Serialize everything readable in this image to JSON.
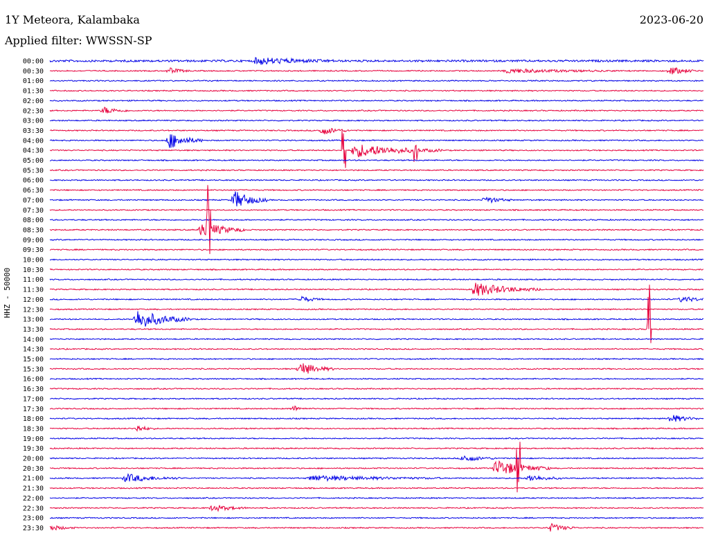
{
  "header": {
    "station": "1Y Meteora, Kalambaka",
    "date": "2023-06-20",
    "filter": "Applied filter: WWSSN-SP"
  },
  "chart_data": {
    "type": "line",
    "title": "1Y Meteora, Kalambaka",
    "ylabel": "HHZ - 50000",
    "colors": [
      "#0000e6",
      "#e6003c"
    ],
    "tick_labels": [
      "00:00",
      "00:30",
      "01:00",
      "01:30",
      "02:00",
      "02:30",
      "03:00",
      "03:30",
      "04:00",
      "04:30",
      "05:00",
      "05:30",
      "06:00",
      "06:30",
      "07:00",
      "07:30",
      "08:00",
      "08:30",
      "09:00",
      "09:30",
      "10:00",
      "10:30",
      "11:00",
      "11:30",
      "12:00",
      "12:30",
      "13:00",
      "13:30",
      "14:00",
      "14:30",
      "15:00",
      "15:30",
      "16:00",
      "16:30",
      "17:00",
      "17:30",
      "18:00",
      "18:30",
      "19:00",
      "19:30",
      "20:00",
      "20:30",
      "21:00",
      "21:30",
      "22:00",
      "22:30",
      "23:00",
      "23:30"
    ],
    "trace_duration_min": 30,
    "events": [
      {
        "trace": "00:00",
        "minute": 9.5,
        "duration_min": 3.5,
        "amplitude": 5,
        "kind": "burst"
      },
      {
        "trace": "00:00",
        "minute": 0,
        "duration_min": 30,
        "amplitude": 1.5,
        "kind": "noise"
      },
      {
        "trace": "00:30",
        "minute": 5.5,
        "duration_min": 1,
        "amplitude": 4,
        "kind": "burst"
      },
      {
        "trace": "00:30",
        "minute": 21,
        "duration_min": 5,
        "amplitude": 3,
        "kind": "burst"
      },
      {
        "trace": "00:30",
        "minute": 28.5,
        "duration_min": 1.2,
        "amplitude": 6,
        "kind": "burst"
      },
      {
        "trace": "02:30",
        "minute": 2.5,
        "duration_min": 1.2,
        "amplitude": 5,
        "kind": "burst"
      },
      {
        "trace": "03:30",
        "minute": 12.5,
        "duration_min": 1.3,
        "amplitude": 6,
        "kind": "burst"
      },
      {
        "trace": "04:00",
        "minute": 5.5,
        "duration_min": 1.5,
        "amplitude": 12,
        "kind": "burst"
      },
      {
        "trace": "04:30",
        "minute": 14,
        "duration_min": 4,
        "amplitude": 10,
        "kind": "burst"
      },
      {
        "trace": "04:30",
        "minute": 13.5,
        "duration_min": 0.2,
        "amplitude": 40,
        "kind": "spike"
      },
      {
        "trace": "04:30",
        "minute": 16.8,
        "duration_min": 0.2,
        "amplitude": 16,
        "kind": "spike"
      },
      {
        "trace": "07:00",
        "minute": 8.5,
        "duration_min": 1.5,
        "amplitude": 13,
        "kind": "burst"
      },
      {
        "trace": "07:00",
        "minute": 20,
        "duration_min": 1.2,
        "amplitude": 5,
        "kind": "burst"
      },
      {
        "trace": "08:30",
        "minute": 7,
        "duration_min": 2,
        "amplitude": 12,
        "kind": "burst"
      },
      {
        "trace": "08:30",
        "minute": 7.3,
        "duration_min": 0.2,
        "amplitude": 60,
        "kind": "spike"
      },
      {
        "trace": "11:30",
        "minute": 19.5,
        "duration_min": 3,
        "amplitude": 10,
        "kind": "burst"
      },
      {
        "trace": "12:00",
        "minute": 11.5,
        "duration_min": 1,
        "amplitude": 5,
        "kind": "burst"
      },
      {
        "trace": "12:00",
        "minute": 29,
        "duration_min": 1.5,
        "amplitude": 4,
        "kind": "burst"
      },
      {
        "trace": "13:00",
        "minute": 4,
        "duration_min": 2.5,
        "amplitude": 14,
        "kind": "burst"
      },
      {
        "trace": "13:30",
        "minute": 27.5,
        "duration_min": 0.2,
        "amplitude": 70,
        "kind": "spike"
      },
      {
        "trace": "15:30",
        "minute": 11.5,
        "duration_min": 1.5,
        "amplitude": 10,
        "kind": "burst"
      },
      {
        "trace": "17:30",
        "minute": 11.2,
        "duration_min": 0.6,
        "amplitude": 4,
        "kind": "burst"
      },
      {
        "trace": "18:00",
        "minute": 28.5,
        "duration_min": 1.3,
        "amplitude": 6,
        "kind": "burst"
      },
      {
        "trace": "18:30",
        "minute": 4,
        "duration_min": 0.8,
        "amplitude": 5,
        "kind": "burst"
      },
      {
        "trace": "20:00",
        "minute": 19,
        "duration_min": 1.5,
        "amplitude": 5,
        "kind": "burst"
      },
      {
        "trace": "20:30",
        "minute": 20.5,
        "duration_min": 2.5,
        "amplitude": 12,
        "kind": "burst"
      },
      {
        "trace": "20:30",
        "minute": 21.5,
        "duration_min": 0.2,
        "amplitude": 35,
        "kind": "spike"
      },
      {
        "trace": "21:00",
        "minute": 3.5,
        "duration_min": 2.5,
        "amplitude": 6,
        "kind": "burst"
      },
      {
        "trace": "21:00",
        "minute": 12,
        "duration_min": 6,
        "amplitude": 4,
        "kind": "burst"
      },
      {
        "trace": "21:00",
        "minute": 22,
        "duration_min": 1.5,
        "amplitude": 5,
        "kind": "burst"
      },
      {
        "trace": "22:30",
        "minute": 7.5,
        "duration_min": 1.5,
        "amplitude": 5,
        "kind": "burst"
      },
      {
        "trace": "23:30",
        "minute": 23,
        "duration_min": 1.2,
        "amplitude": 6,
        "kind": "burst"
      },
      {
        "trace": "23:30",
        "minute": 0,
        "duration_min": 1.2,
        "amplitude": 4,
        "kind": "burst"
      }
    ]
  }
}
